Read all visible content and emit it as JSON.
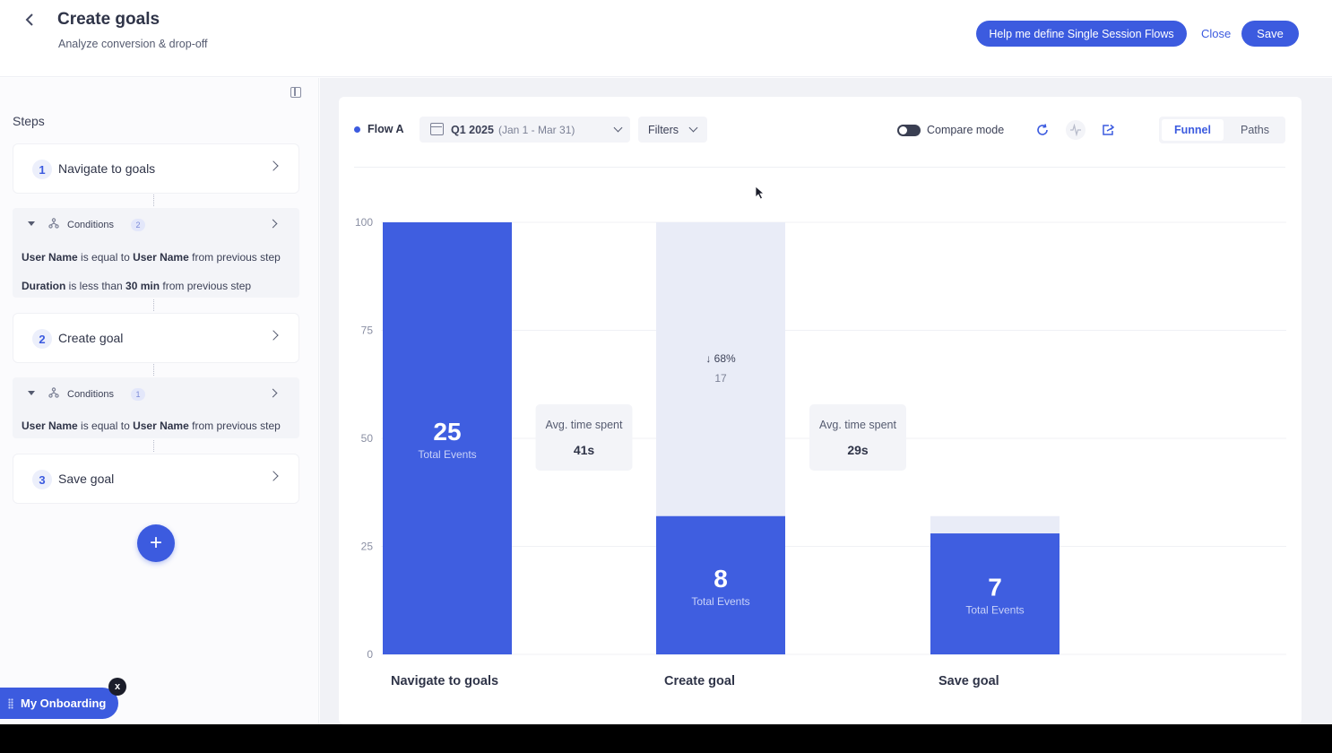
{
  "header": {
    "title": "Create goals",
    "subtitle": "Analyze conversion & drop-off",
    "help_button": "Help me define Single Session Flows",
    "close_button": "Close",
    "save_button": "Save"
  },
  "steps_panel": {
    "label": "Steps",
    "steps": [
      {
        "number": "1",
        "label": "Navigate to goals"
      },
      {
        "number": "2",
        "label": "Create goal"
      },
      {
        "number": "3",
        "label": "Save goal"
      }
    ],
    "condition_groups": [
      {
        "label": "Conditions",
        "count": "2",
        "lines": [
          {
            "field": "User Name",
            "op": " is equal to ",
            "value": "User Name",
            "suffix": " from previous step"
          },
          {
            "field": "Duration",
            "op": " is less than ",
            "value": "30 min",
            "suffix": " from previous step"
          }
        ]
      },
      {
        "label": "Conditions",
        "count": "1",
        "lines": [
          {
            "field": "User Name",
            "op": " is equal to ",
            "value": "User Name",
            "suffix": " from previous step"
          }
        ]
      }
    ],
    "add_step": "+"
  },
  "toolbar": {
    "flow_label": "Flow A",
    "date_main": "Q1 2025",
    "date_range": "(Jan 1 - Mar 31)",
    "filters": "Filters",
    "compare_mode": "Compare mode",
    "view_funnel": "Funnel",
    "view_paths": "Paths"
  },
  "chart_data": {
    "type": "bar",
    "ylim": [
      0,
      100
    ],
    "yticks": [
      0,
      25,
      50,
      75,
      100
    ],
    "categories": [
      "Navigate to goals",
      "Create goal",
      "Save goal"
    ],
    "values": [
      25,
      8,
      7
    ],
    "percent_of_first": [
      100,
      32,
      28
    ],
    "bar_sublabel": "Total Events",
    "dropoff": {
      "after_step": 1,
      "percent": "↓ 68%",
      "count": "17"
    },
    "avg_time": [
      {
        "between": [
          1,
          2
        ],
        "label": "Avg. time spent",
        "value": "41s"
      },
      {
        "between": [
          2,
          3
        ],
        "label": "Avg. time spent",
        "value": "29s"
      }
    ],
    "colors": {
      "bar": "#3f5ee0",
      "ghost": "#e9ecf7",
      "grid": "#f0f1f5"
    }
  },
  "onboarding": {
    "label": "My Onboarding",
    "close": "x"
  }
}
